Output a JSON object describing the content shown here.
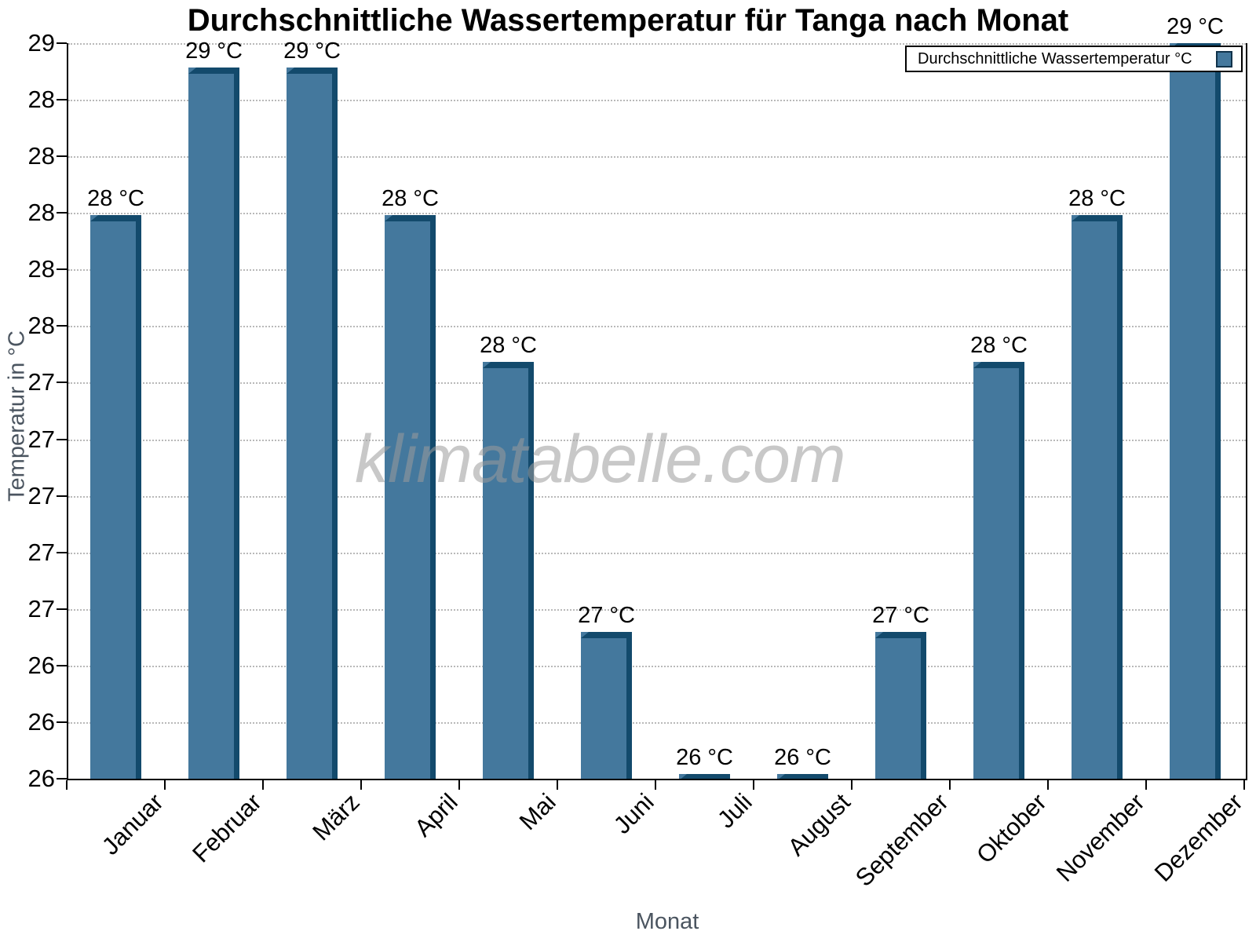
{
  "title": "Durchschnittliche Wassertemperatur für Tanga nach Monat",
  "watermark": "klimatabelle.com",
  "legend": {
    "label": "Durchschnittliche Wassertemperatur °C"
  },
  "x_axis": {
    "title": "Monat"
  },
  "y_axis": {
    "title": "Temperatur in °C",
    "tick_labels": [
      "29",
      "28",
      "28",
      "28",
      "28",
      "28",
      "27",
      "27",
      "27",
      "27",
      "27",
      "26",
      "26",
      "26"
    ]
  },
  "chart_data": {
    "type": "bar",
    "title": "Durchschnittliche Wassertemperatur für Tanga nach Monat",
    "xlabel": "Monat",
    "ylabel": "Temperatur in °C",
    "ylim": [
      26,
      29
    ],
    "grid": "horizontal-dotted",
    "legend_position": "top-right",
    "legend_label": "Durchschnittliche Wassertemperatur °C",
    "bar_color": "#44789D",
    "bar_edge_color": "#134A6C",
    "categories": [
      "Januar",
      "Februar",
      "März",
      "April",
      "Mai",
      "Juni",
      "Juli",
      "August",
      "September",
      "Oktober",
      "November",
      "Dezember"
    ],
    "values": [
      28.3,
      28.9,
      28.9,
      28.3,
      27.7,
      26.6,
      26.0,
      26.0,
      26.6,
      27.7,
      28.3,
      29.0
    ],
    "bar_labels": [
      "28 °C",
      "29 °C",
      "29 °C",
      "28 °C",
      "28 °C",
      "27 °C",
      "26 °C",
      "26 °C",
      "27 °C",
      "28 °C",
      "28 °C",
      "29 °C"
    ]
  }
}
